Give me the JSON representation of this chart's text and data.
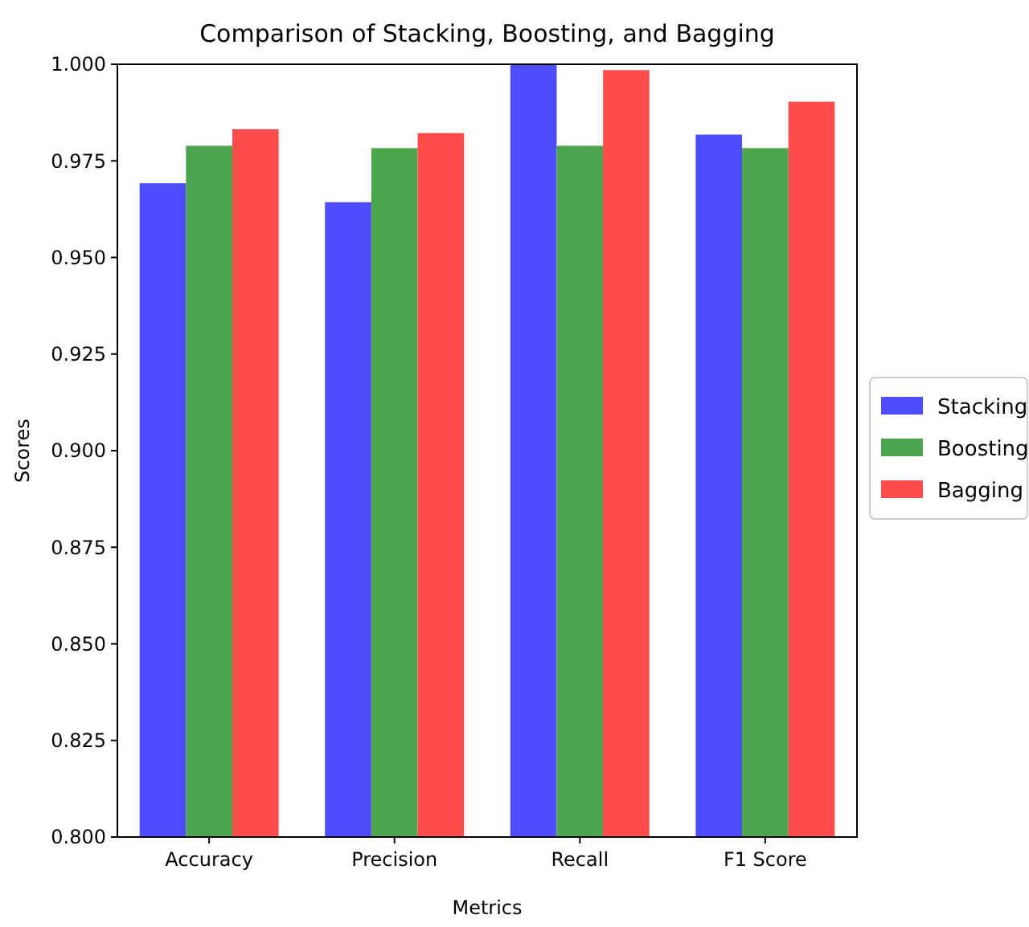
{
  "chart_data": {
    "type": "bar",
    "title": "Comparison of Stacking, Boosting, and Bagging",
    "xlabel": "Metrics",
    "ylabel": "Scores",
    "categories": [
      "Accuracy",
      "Precision",
      "Recall",
      "F1 Score"
    ],
    "series": [
      {
        "name": "Stacking",
        "color": "#4d4dff",
        "values": [
          0.9692,
          0.9643,
          1.0,
          0.9818
        ]
      },
      {
        "name": "Boosting",
        "color": "#4da64d",
        "values": [
          0.9789,
          0.9783,
          0.9789,
          0.9783
        ]
      },
      {
        "name": "Bagging",
        "color": "#ff4d4d",
        "values": [
          0.9832,
          0.9822,
          0.9985,
          0.9903
        ]
      }
    ],
    "ylim": [
      0.8,
      1.0
    ],
    "yticks": [
      {
        "value": 0.8,
        "label": "0.800"
      },
      {
        "value": 0.825,
        "label": "0.825"
      },
      {
        "value": 0.85,
        "label": "0.850"
      },
      {
        "value": 0.875,
        "label": "0.875"
      },
      {
        "value": 0.9,
        "label": "0.900"
      },
      {
        "value": 0.925,
        "label": "0.925"
      },
      {
        "value": 0.95,
        "label": "0.950"
      },
      {
        "value": 0.975,
        "label": "0.975"
      },
      {
        "value": 1.0,
        "label": "1.000"
      }
    ],
    "legend": "right",
    "grid": false
  }
}
